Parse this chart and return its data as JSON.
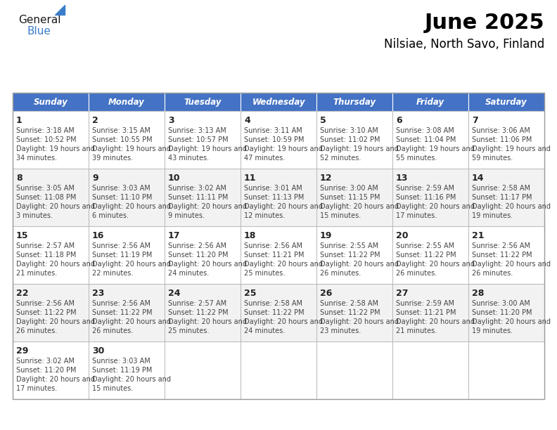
{
  "title": "June 2025",
  "subtitle": "Nilsiae, North Savo, Finland",
  "days_of_week": [
    "Sunday",
    "Monday",
    "Tuesday",
    "Wednesday",
    "Thursday",
    "Friday",
    "Saturday"
  ],
  "header_bg": "#4472C4",
  "header_text": "#FFFFFF",
  "cell_bg_odd": "#FFFFFF",
  "cell_bg_even": "#F2F2F2",
  "cell_border": "#AAAAAA",
  "cell_text_color": "#444444",
  "title_color": "#000000",
  "subtitle_color": "#000000",
  "calendar_data": [
    [
      {
        "day": 1,
        "sunrise": "3:18 AM",
        "sunset": "10:52 PM",
        "daylight": "19 hours and 34 minutes."
      },
      {
        "day": 2,
        "sunrise": "3:15 AM",
        "sunset": "10:55 PM",
        "daylight": "19 hours and 39 minutes."
      },
      {
        "day": 3,
        "sunrise": "3:13 AM",
        "sunset": "10:57 PM",
        "daylight": "19 hours and 43 minutes."
      },
      {
        "day": 4,
        "sunrise": "3:11 AM",
        "sunset": "10:59 PM",
        "daylight": "19 hours and 47 minutes."
      },
      {
        "day": 5,
        "sunrise": "3:10 AM",
        "sunset": "11:02 PM",
        "daylight": "19 hours and 52 minutes."
      },
      {
        "day": 6,
        "sunrise": "3:08 AM",
        "sunset": "11:04 PM",
        "daylight": "19 hours and 55 minutes."
      },
      {
        "day": 7,
        "sunrise": "3:06 AM",
        "sunset": "11:06 PM",
        "daylight": "19 hours and 59 minutes."
      }
    ],
    [
      {
        "day": 8,
        "sunrise": "3:05 AM",
        "sunset": "11:08 PM",
        "daylight": "20 hours and 3 minutes."
      },
      {
        "day": 9,
        "sunrise": "3:03 AM",
        "sunset": "11:10 PM",
        "daylight": "20 hours and 6 minutes."
      },
      {
        "day": 10,
        "sunrise": "3:02 AM",
        "sunset": "11:11 PM",
        "daylight": "20 hours and 9 minutes."
      },
      {
        "day": 11,
        "sunrise": "3:01 AM",
        "sunset": "11:13 PM",
        "daylight": "20 hours and 12 minutes."
      },
      {
        "day": 12,
        "sunrise": "3:00 AM",
        "sunset": "11:15 PM",
        "daylight": "20 hours and 15 minutes."
      },
      {
        "day": 13,
        "sunrise": "2:59 AM",
        "sunset": "11:16 PM",
        "daylight": "20 hours and 17 minutes."
      },
      {
        "day": 14,
        "sunrise": "2:58 AM",
        "sunset": "11:17 PM",
        "daylight": "20 hours and 19 minutes."
      }
    ],
    [
      {
        "day": 15,
        "sunrise": "2:57 AM",
        "sunset": "11:18 PM",
        "daylight": "20 hours and 21 minutes."
      },
      {
        "day": 16,
        "sunrise": "2:56 AM",
        "sunset": "11:19 PM",
        "daylight": "20 hours and 22 minutes."
      },
      {
        "day": 17,
        "sunrise": "2:56 AM",
        "sunset": "11:20 PM",
        "daylight": "20 hours and 24 minutes."
      },
      {
        "day": 18,
        "sunrise": "2:56 AM",
        "sunset": "11:21 PM",
        "daylight": "20 hours and 25 minutes."
      },
      {
        "day": 19,
        "sunrise": "2:55 AM",
        "sunset": "11:22 PM",
        "daylight": "20 hours and 26 minutes."
      },
      {
        "day": 20,
        "sunrise": "2:55 AM",
        "sunset": "11:22 PM",
        "daylight": "20 hours and 26 minutes."
      },
      {
        "day": 21,
        "sunrise": "2:56 AM",
        "sunset": "11:22 PM",
        "daylight": "20 hours and 26 minutes."
      }
    ],
    [
      {
        "day": 22,
        "sunrise": "2:56 AM",
        "sunset": "11:22 PM",
        "daylight": "20 hours and 26 minutes."
      },
      {
        "day": 23,
        "sunrise": "2:56 AM",
        "sunset": "11:22 PM",
        "daylight": "20 hours and 26 minutes."
      },
      {
        "day": 24,
        "sunrise": "2:57 AM",
        "sunset": "11:22 PM",
        "daylight": "20 hours and 25 minutes."
      },
      {
        "day": 25,
        "sunrise": "2:58 AM",
        "sunset": "11:22 PM",
        "daylight": "20 hours and 24 minutes."
      },
      {
        "day": 26,
        "sunrise": "2:58 AM",
        "sunset": "11:22 PM",
        "daylight": "20 hours and 23 minutes."
      },
      {
        "day": 27,
        "sunrise": "2:59 AM",
        "sunset": "11:21 PM",
        "daylight": "20 hours and 21 minutes."
      },
      {
        "day": 28,
        "sunrise": "3:00 AM",
        "sunset": "11:20 PM",
        "daylight": "20 hours and 19 minutes."
      }
    ],
    [
      {
        "day": 29,
        "sunrise": "3:02 AM",
        "sunset": "11:20 PM",
        "daylight": "20 hours and 17 minutes."
      },
      {
        "day": 30,
        "sunrise": "3:03 AM",
        "sunset": "11:19 PM",
        "daylight": "20 hours and 15 minutes."
      },
      null,
      null,
      null,
      null,
      null
    ]
  ],
  "logo_blue": "#3A7DC9",
  "logo_triangle_color": "#3A7DC9"
}
